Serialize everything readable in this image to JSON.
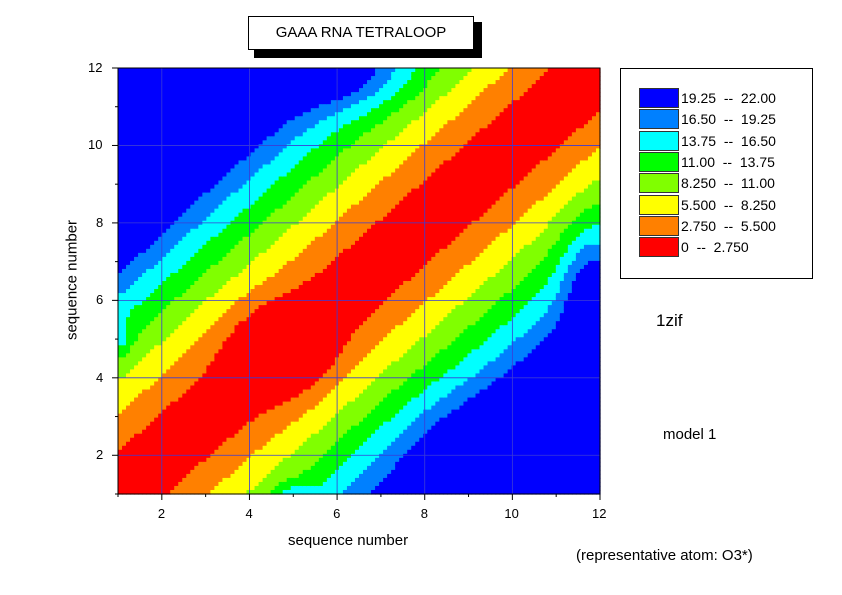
{
  "title": "GAAA RNA TETRALOOP",
  "pdb_id": "1zif",
  "model_label": "model 1",
  "footnote": "(representative atom: O3*)",
  "chart_data": {
    "type": "heatmap",
    "title": "GAAA RNA TETRALOOP",
    "xlabel": "sequence number",
    "ylabel": "sequence number",
    "xlim": [
      1,
      12
    ],
    "ylim": [
      1,
      12
    ],
    "x_ticks": [
      2,
      4,
      6,
      8,
      10,
      12
    ],
    "y_ticks": [
      2,
      4,
      6,
      8,
      10,
      12
    ],
    "grid": true,
    "legend_position": "right",
    "levels": [
      {
        "label": "19.25  --  22.00",
        "min": 19.25,
        "max": 22.0,
        "color": "#0000ff"
      },
      {
        "label": "16.50  --  19.25",
        "min": 16.5,
        "max": 19.25,
        "color": "#0080ff"
      },
      {
        "label": "13.75  --  16.50",
        "min": 13.75,
        "max": 16.5,
        "color": "#00ffff"
      },
      {
        "label": "11.00  --  13.75",
        "min": 11.0,
        "max": 13.75,
        "color": "#00ff00"
      },
      {
        "label": "8.250  --  11.00",
        "min": 8.25,
        "max": 11.0,
        "color": "#80ff00"
      },
      {
        "label": "5.500  --  8.250",
        "min": 5.5,
        "max": 8.25,
        "color": "#ffff00"
      },
      {
        "label": "2.750  --  5.500",
        "min": 2.75,
        "max": 5.5,
        "color": "#ff8000"
      },
      {
        "label": "0  --  2.750",
        "min": 0,
        "max": 2.75,
        "color": "#ff0000"
      }
    ]
  }
}
